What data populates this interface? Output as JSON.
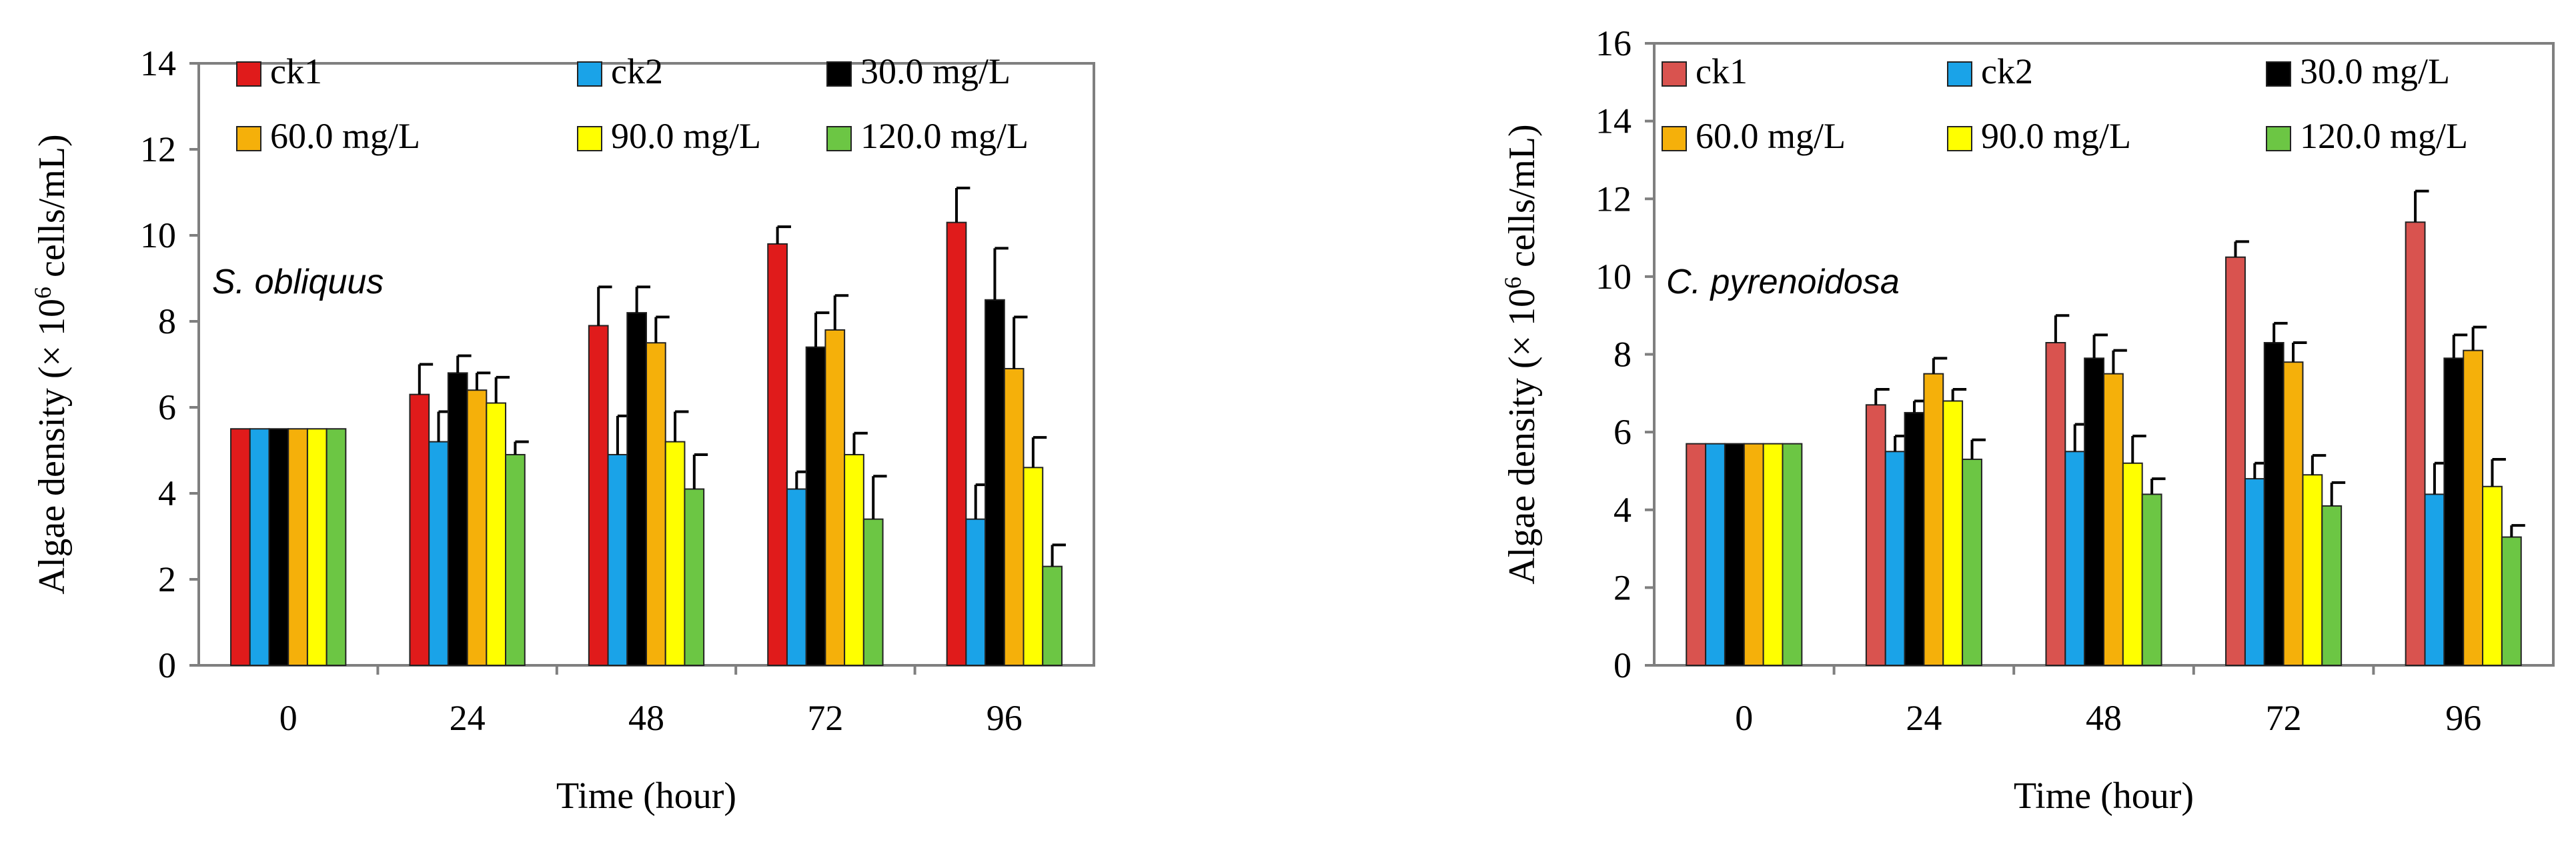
{
  "chart_data": [
    {
      "type": "bar",
      "categories": [
        "0",
        "24",
        "48",
        "72",
        "96"
      ],
      "xlabel": "Time (hour)",
      "ylabel": {
        "prefix": "Algae density (",
        "times": "×",
        "base": "10",
        "exp": "6",
        "suffix": " cells/mL)"
      },
      "ylim": [
        0,
        14
      ],
      "yticks": [
        0,
        2,
        4,
        6,
        8,
        10,
        12,
        14
      ],
      "annotation": "S. obliquus",
      "legend_position": "top",
      "series": [
        {
          "name": "ck1",
          "color": "#e01b1b",
          "values": [
            5.5,
            6.3,
            7.9,
            9.8,
            10.3
          ],
          "errors": [
            0,
            0.7,
            0.9,
            0.4,
            0.8
          ]
        },
        {
          "name": "ck2",
          "color": "#1aa3e8",
          "values": [
            5.5,
            5.2,
            4.9,
            4.1,
            3.4
          ],
          "errors": [
            0,
            0.7,
            0.9,
            0.4,
            0.8
          ]
        },
        {
          "name": "30.0 mg/L",
          "color": "#000000",
          "values": [
            5.5,
            6.8,
            8.2,
            7.4,
            8.5
          ],
          "errors": [
            0,
            0.4,
            0.6,
            0.8,
            1.2
          ]
        },
        {
          "name": "60.0 mg/L",
          "color": "#f5b00a",
          "values": [
            5.5,
            6.4,
            7.5,
            7.8,
            6.9
          ],
          "errors": [
            0,
            0.4,
            0.6,
            0.8,
            1.2
          ]
        },
        {
          "name": "90.0 mg/L",
          "color": "#ffff00",
          "values": [
            5.5,
            6.1,
            5.2,
            4.9,
            4.6
          ],
          "errors": [
            0,
            0.6,
            0.7,
            0.5,
            0.7
          ]
        },
        {
          "name": "120.0 mg/L",
          "color": "#6cc644",
          "values": [
            5.5,
            4.9,
            4.1,
            3.4,
            2.3
          ],
          "errors": [
            0,
            0.3,
            0.8,
            1.0,
            0.5
          ]
        }
      ]
    },
    {
      "type": "bar",
      "categories": [
        "0",
        "24",
        "48",
        "72",
        "96"
      ],
      "xlabel": "Time (hour)",
      "ylabel": {
        "prefix": "Algae density (",
        "times": "×",
        "base": "10",
        "exp": "6",
        "suffix": " cells/mL)"
      },
      "ylim": [
        0,
        16
      ],
      "yticks": [
        0,
        2,
        4,
        6,
        8,
        10,
        12,
        14,
        16
      ],
      "annotation": "C. pyrenoidosa",
      "legend_position": "top",
      "series": [
        {
          "name": "ck1",
          "color": "#d9534f",
          "values": [
            5.7,
            6.7,
            8.3,
            10.5,
            11.4
          ],
          "errors": [
            0,
            0.4,
            0.7,
            0.4,
            0.8
          ]
        },
        {
          "name": "ck2",
          "color": "#1aa3e8",
          "values": [
            5.7,
            5.5,
            5.5,
            4.8,
            4.4
          ],
          "errors": [
            0,
            0.4,
            0.7,
            0.4,
            0.8
          ]
        },
        {
          "name": "30.0 mg/L",
          "color": "#000000",
          "values": [
            5.7,
            6.5,
            7.9,
            8.3,
            7.9
          ],
          "errors": [
            0,
            0.3,
            0.6,
            0.5,
            0.6
          ]
        },
        {
          "name": "60.0 mg/L",
          "color": "#f5b00a",
          "values": [
            5.7,
            7.5,
            7.5,
            7.8,
            8.1
          ],
          "errors": [
            0,
            0.4,
            0.6,
            0.5,
            0.6
          ]
        },
        {
          "name": "90.0 mg/L",
          "color": "#ffff00",
          "values": [
            5.7,
            6.8,
            5.2,
            4.9,
            4.6
          ],
          "errors": [
            0,
            0.3,
            0.7,
            0.5,
            0.7
          ]
        },
        {
          "name": "120.0 mg/L",
          "color": "#6cc644",
          "values": [
            5.7,
            5.3,
            4.4,
            4.1,
            3.3
          ],
          "errors": [
            0,
            0.5,
            0.4,
            0.6,
            0.3
          ]
        }
      ]
    }
  ]
}
